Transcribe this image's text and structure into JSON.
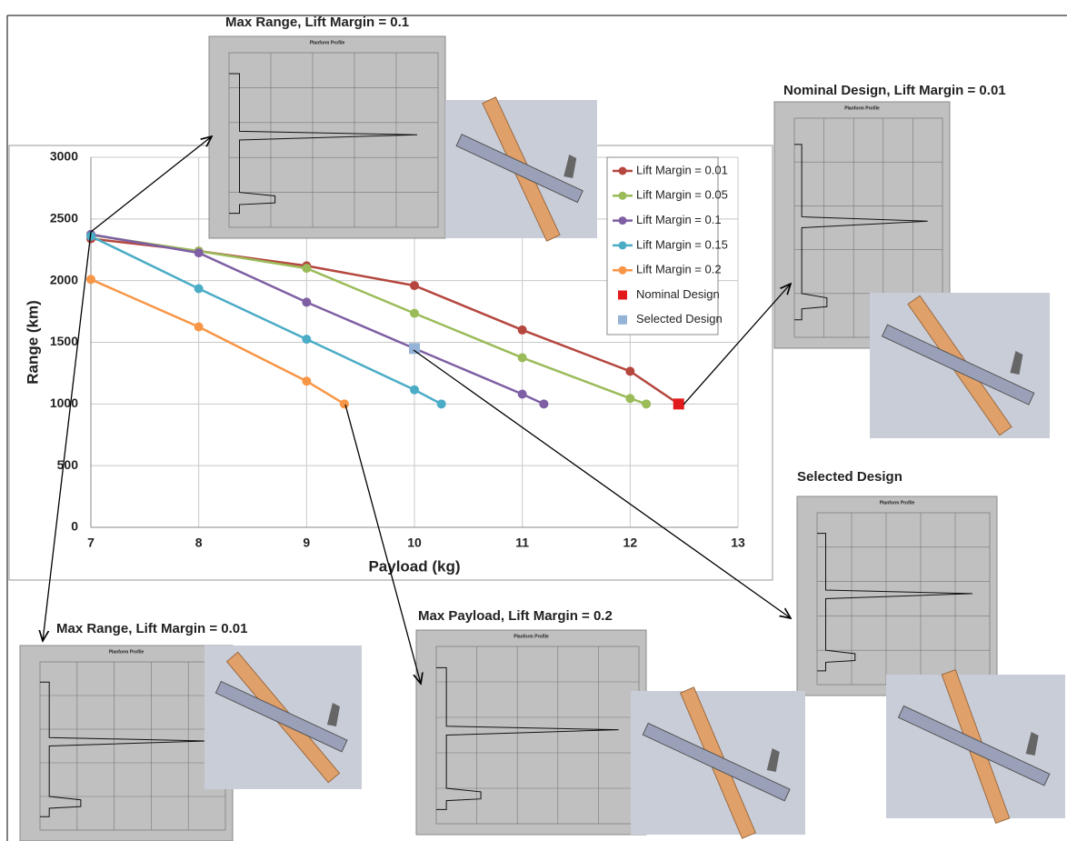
{
  "chart_data": {
    "type": "line",
    "x_label": "Payload (kg)",
    "y_label": "Range (km)",
    "xlim": [
      7,
      13
    ],
    "xticks": [
      7,
      8,
      9,
      10,
      11,
      12,
      13
    ],
    "ylim": [
      0,
      3000
    ],
    "yticks": [
      0,
      500,
      1000,
      1500,
      2000,
      2500,
      3000
    ],
    "grid": true,
    "legend_position": "upper right",
    "series": [
      {
        "name": "Lift Margin = 0.01",
        "color": "#b5473f",
        "marker": "circle",
        "x": [
          7,
          8,
          9,
          10,
          11,
          12,
          12.45
        ],
        "values": [
          2340,
          2240,
          2120,
          1960,
          1600,
          1265,
          1000
        ]
      },
      {
        "name": "Lift Margin = 0.05",
        "color": "#9bbb59",
        "marker": "circle",
        "x": [
          7,
          8,
          9,
          10,
          11,
          12,
          12.15
        ],
        "values": [
          2370,
          2240,
          2100,
          1735,
          1375,
          1045,
          1000
        ]
      },
      {
        "name": "Lift Margin = 0.1",
        "color": "#7e5fa3",
        "marker": "circle",
        "x": [
          7,
          8,
          9,
          10,
          11,
          11.2
        ],
        "values": [
          2375,
          2225,
          1825,
          1450,
          1080,
          1000
        ]
      },
      {
        "name": "Lift Margin = 0.15",
        "color": "#4bacc6",
        "marker": "circle",
        "x": [
          7,
          8,
          9,
          10,
          10.25
        ],
        "values": [
          2360,
          1935,
          1525,
          1115,
          1000
        ]
      },
      {
        "name": "Lift Margin = 0.2",
        "color": "#f79646",
        "marker": "circle",
        "x": [
          7,
          8,
          9,
          9.35
        ],
        "values": [
          2010,
          1625,
          1185,
          1000
        ]
      },
      {
        "name": "Nominal Design",
        "color": "#e31a1c",
        "marker": "square",
        "x": [
          12.45
        ],
        "values": [
          1000
        ]
      },
      {
        "name": "Selected Design",
        "color": "#95b3d7",
        "marker": "square",
        "x": [
          10
        ],
        "values": [
          1450
        ]
      }
    ],
    "annotations": [
      "Max Range, Lift Margin = 0.1",
      "Nominal Design, Lift Margin = 0.01",
      "Selected Design",
      "Max Payload, Lift Margin = 0.2",
      "Max Range, Lift Margin = 0.01"
    ],
    "inset_chart_title": "Planform Profile"
  }
}
